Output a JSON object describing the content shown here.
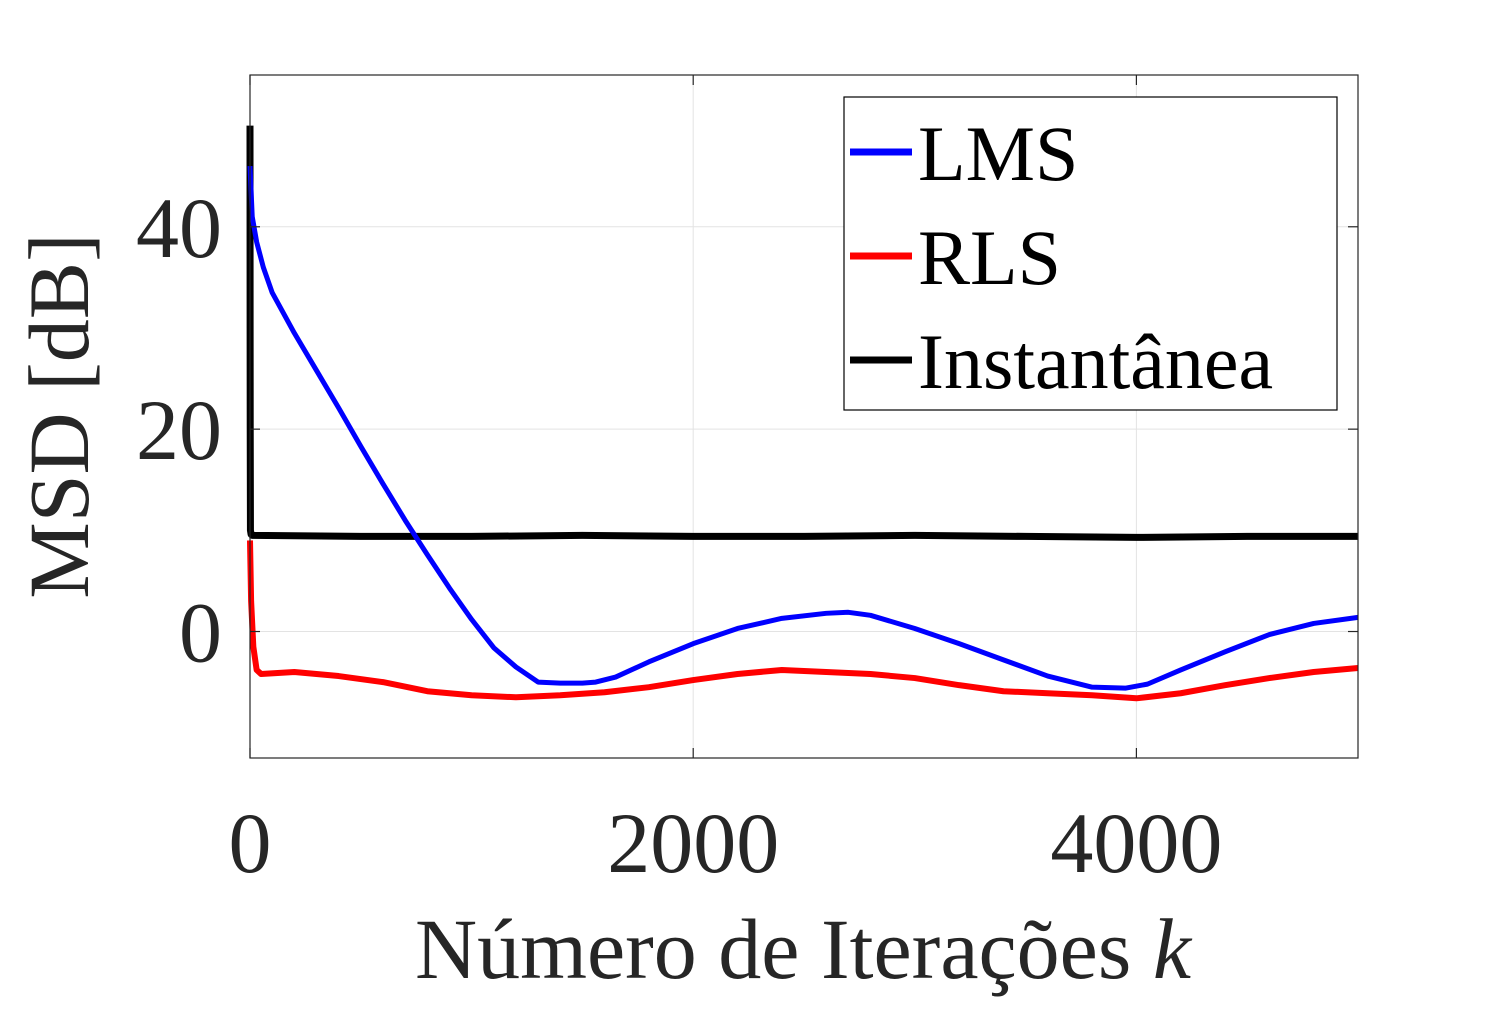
{
  "chart_data": {
    "type": "line",
    "xlabel": "Número de Iterações",
    "xlabel_var": "k",
    "ylabel": "MSD [dB]",
    "xlim": [
      0,
      5000
    ],
    "ylim": [
      -12.5,
      55
    ],
    "xticks": [
      0,
      2000,
      4000
    ],
    "yticks": [
      0,
      20,
      40
    ],
    "xtick_labels": [
      "0",
      "2000",
      "4000"
    ],
    "ytick_labels": [
      "0",
      "20",
      "40"
    ],
    "grid": true,
    "legend_position": "top-right",
    "series": [
      {
        "name": "LMS",
        "color": "#0000ff",
        "x": [
          0,
          10,
          30,
          60,
          100,
          200,
          300,
          400,
          500,
          600,
          700,
          800,
          900,
          1000,
          1100,
          1200,
          1300,
          1400,
          1500,
          1560,
          1650,
          1800,
          2000,
          2200,
          2400,
          2600,
          2700,
          2800,
          3000,
          3200,
          3400,
          3600,
          3800,
          3950,
          4050,
          4200,
          4400,
          4600,
          4800,
          5000
        ],
        "y": [
          46,
          41,
          38.5,
          36,
          33.5,
          29.5,
          25.8,
          22.1,
          18.3,
          14.6,
          11.0,
          7.6,
          4.3,
          1.2,
          -1.6,
          -3.5,
          -5.0,
          -5.1,
          -5.1,
          -5.0,
          -4.5,
          -3.0,
          -1.2,
          0.3,
          1.3,
          1.8,
          1.9,
          1.6,
          0.3,
          -1.2,
          -2.8,
          -4.4,
          -5.5,
          -5.6,
          -5.2,
          -3.8,
          -2.0,
          -0.3,
          0.8,
          1.4
        ]
      },
      {
        "name": "RLS",
        "color": "#ff0000",
        "x": [
          0,
          5,
          15,
          30,
          50,
          200,
          400,
          600,
          800,
          1000,
          1200,
          1400,
          1600,
          1800,
          2000,
          2200,
          2400,
          2600,
          2800,
          3000,
          3200,
          3400,
          3600,
          3800,
          4000,
          4200,
          4400,
          4600,
          4800,
          5000
        ],
        "y": [
          9,
          3,
          -1.5,
          -3.8,
          -4.2,
          -4.0,
          -4.4,
          -5.0,
          -5.9,
          -6.3,
          -6.5,
          -6.3,
          -6.0,
          -5.5,
          -4.8,
          -4.2,
          -3.8,
          -4.0,
          -4.2,
          -4.6,
          -5.3,
          -5.9,
          -6.1,
          -6.3,
          -6.6,
          -6.1,
          -5.3,
          -4.6,
          -4.0,
          -3.6
        ]
      },
      {
        "name": "Instantânea",
        "color": "#000000",
        "x": [
          0,
          0.5,
          1,
          1.5,
          2,
          5,
          10,
          500,
          1000,
          1500,
          2000,
          2500,
          3000,
          3500,
          4000,
          4500,
          5000
        ],
        "y": [
          50,
          30,
          20,
          15,
          10,
          9.6,
          9.5,
          9.4,
          9.4,
          9.5,
          9.4,
          9.4,
          9.5,
          9.4,
          9.3,
          9.4,
          9.4
        ]
      }
    ]
  }
}
